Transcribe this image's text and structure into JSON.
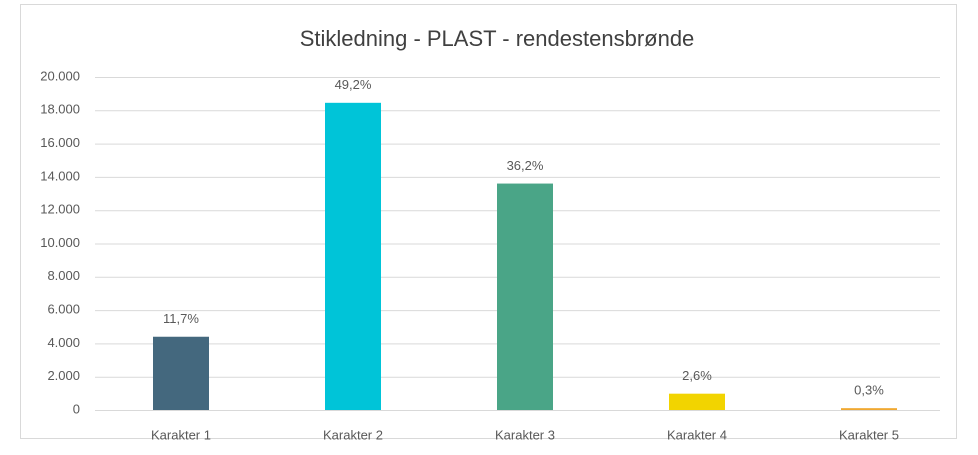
{
  "chart_data": {
    "type": "bar",
    "title": "Stikledning - PLAST - rendestensbrønde",
    "categories": [
      "Karakter 1",
      "Karakter 2",
      "Karakter 3",
      "Karakter 4",
      "Karakter 5"
    ],
    "values": [
      4400,
      18450,
      13600,
      980,
      110
    ],
    "shares": [
      11.7,
      49.2,
      36.2,
      2.6,
      0.3
    ],
    "share_labels": [
      "11,7%",
      "49,2%",
      "36,2%",
      "2,6%",
      "0,3%"
    ],
    "colors": [
      "#44687e",
      "#00c4d8",
      "#4aa587",
      "#f2d400",
      "#f0a830"
    ],
    "ylim": [
      0,
      20000
    ],
    "yticks": [
      0,
      {
        "value": 2000,
        "label": "2.000"
      },
      {
        "value": 4000,
        "label": "4.000"
      },
      {
        "value": 6000,
        "label": "6.000"
      },
      {
        "value": 8000,
        "label": "8.000"
      },
      {
        "value": 10000,
        "label": "10.000"
      },
      {
        "value": 12000,
        "label": "12.000"
      },
      {
        "value": 14000,
        "label": "14.000"
      },
      {
        "value": 16000,
        "label": "16.000"
      },
      {
        "value": 18000,
        "label": "18.000"
      },
      {
        "value": 20000,
        "label": "20.000"
      }
    ],
    "grid": true
  }
}
